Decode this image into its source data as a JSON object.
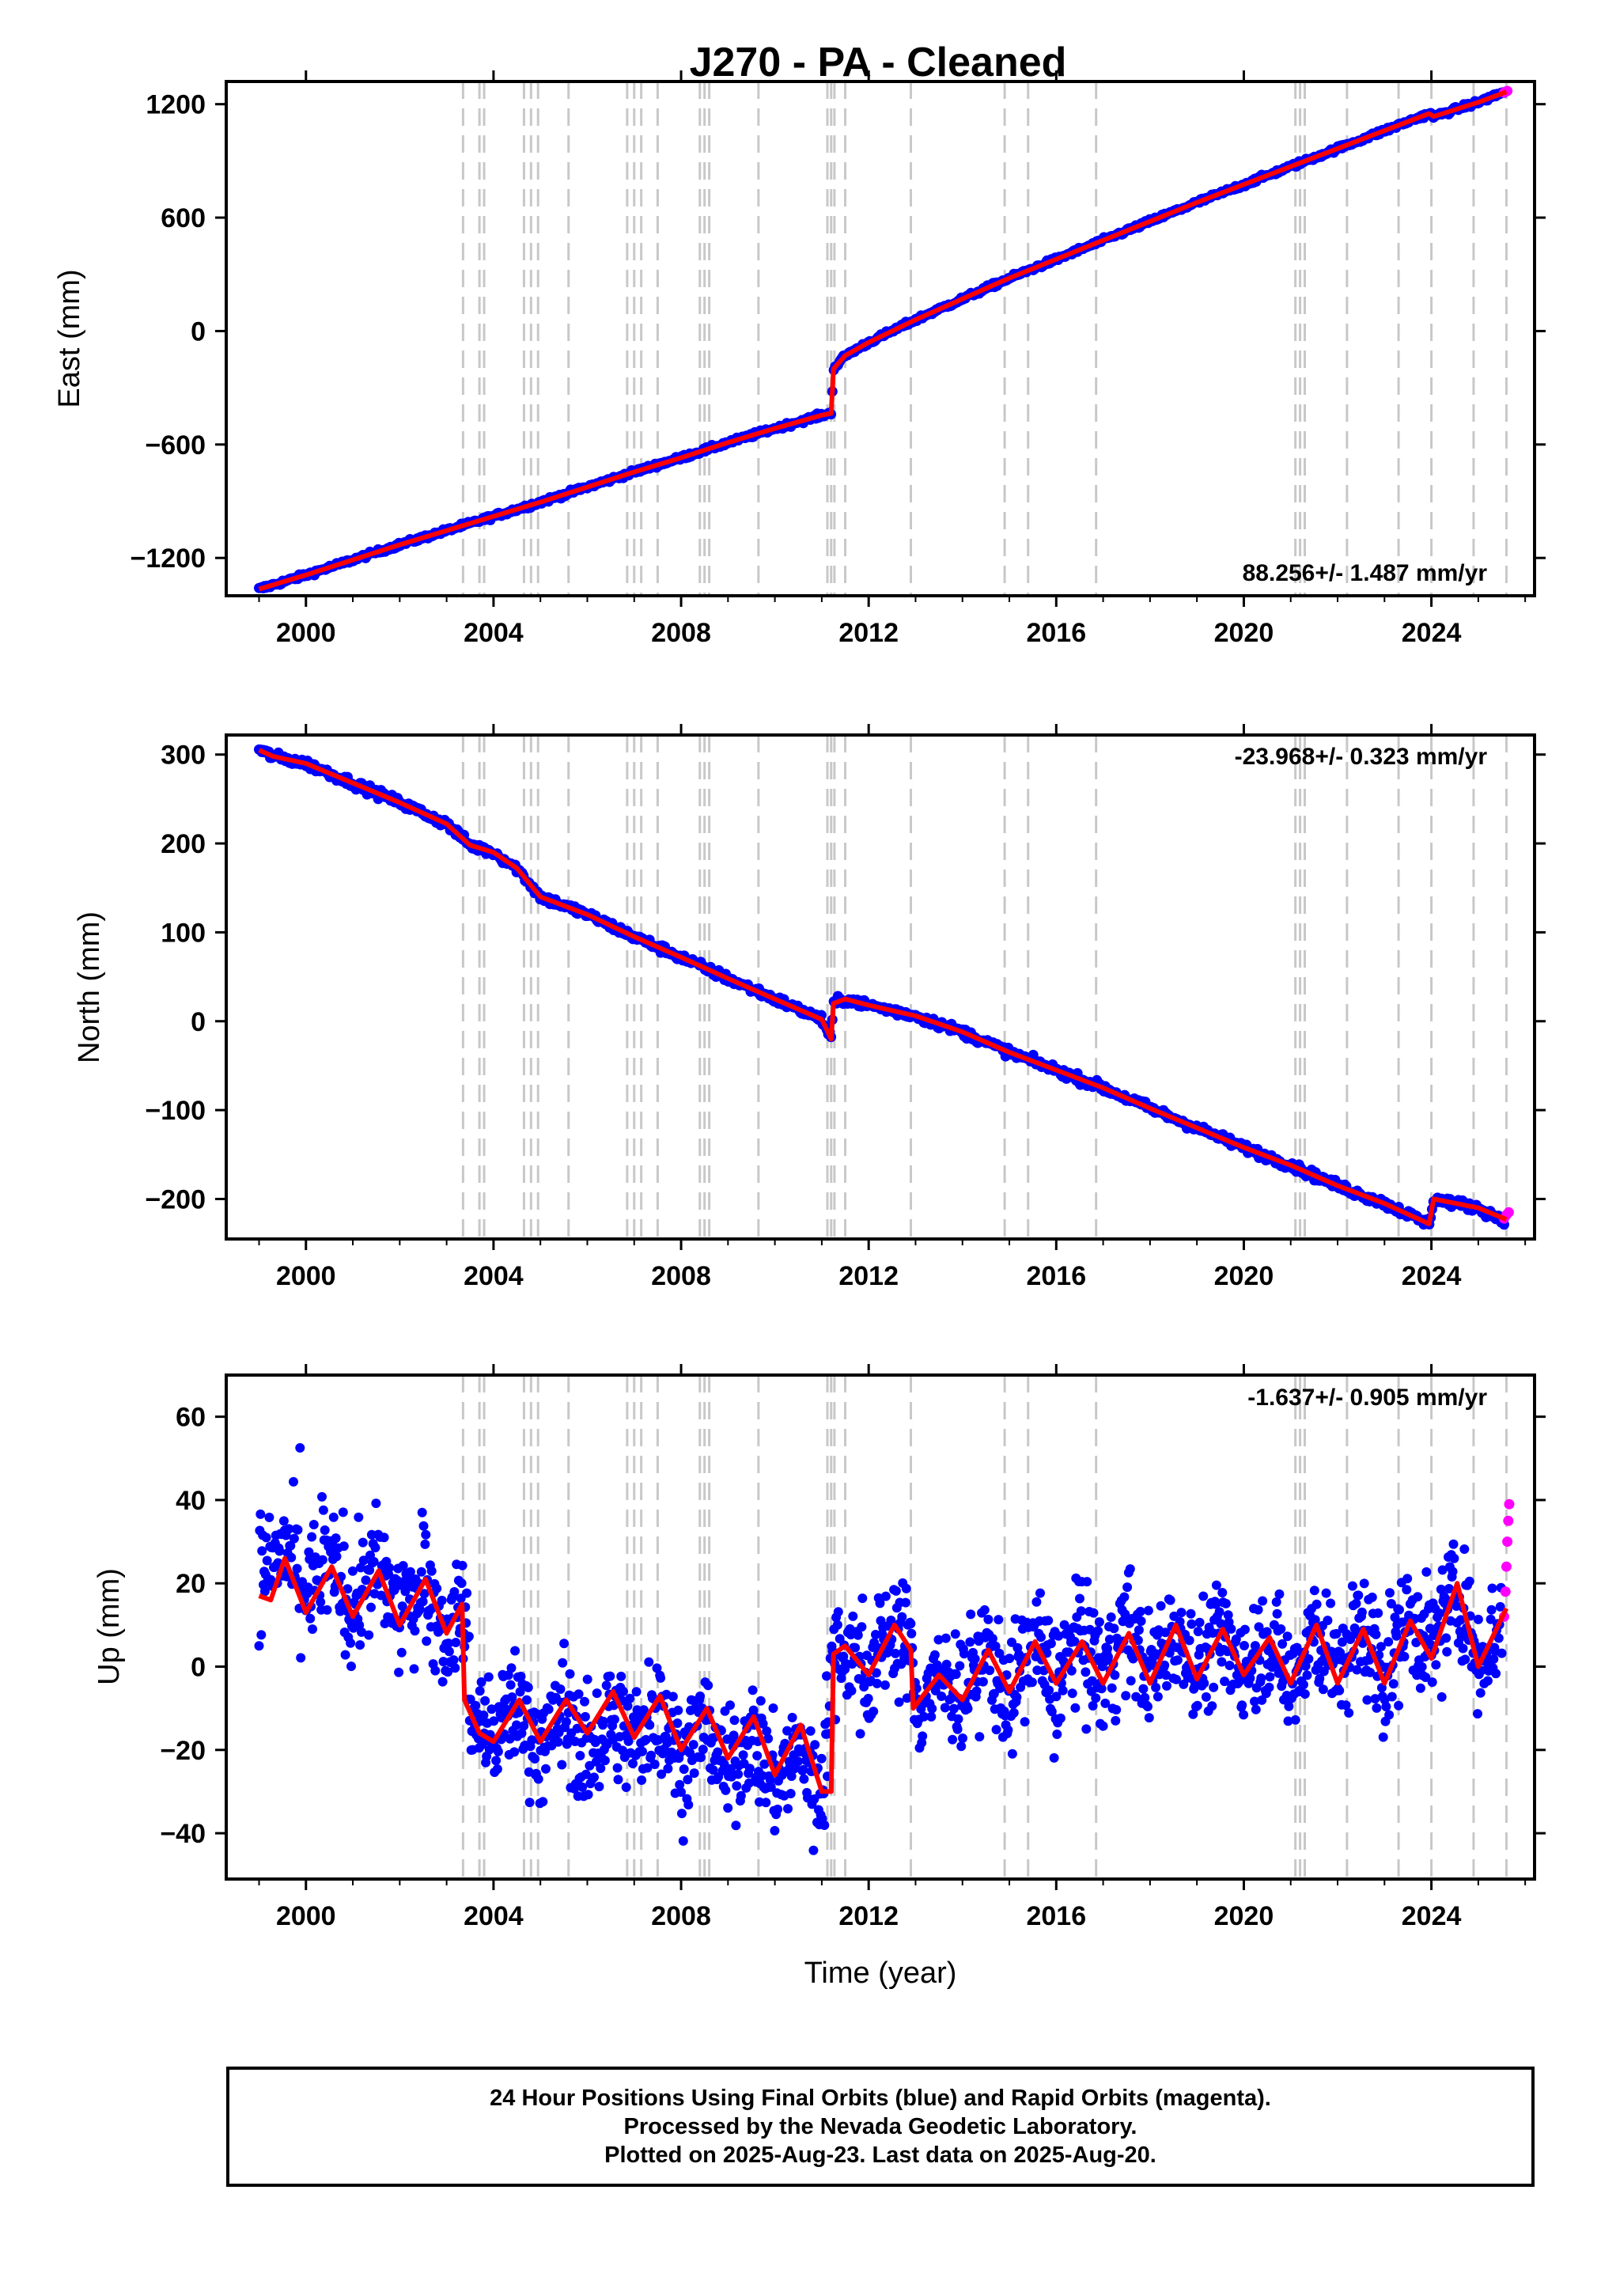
{
  "title": "J270  - PA - Cleaned",
  "x_axis": {
    "label": "Time (year)",
    "range": [
      1998.3,
      2026.2
    ],
    "ticks": [
      2000,
      2004,
      2008,
      2012,
      2016,
      2020,
      2024
    ],
    "tick_labels": [
      "2000",
      "2004",
      "2008",
      "2012",
      "2016",
      "2020",
      "2024"
    ]
  },
  "colors": {
    "final_orbits": "#0000ff",
    "rapid_orbits": "#ff00ff",
    "model": "#ff0000",
    "offset_lines": "#c8c8c8"
  },
  "offset_epochs": [
    2003.35,
    2003.7,
    2003.8,
    2004.65,
    2004.8,
    2004.95,
    2005.6,
    2006.85,
    2007.0,
    2007.15,
    2007.5,
    2008.4,
    2008.5,
    2008.6,
    2009.65,
    2011.12,
    2011.2,
    2011.27,
    2011.5,
    2012.9,
    2014.9,
    2015.4,
    2016.85,
    2021.1,
    2021.2,
    2021.3,
    2022.2,
    2023.3,
    2024.0,
    2024.9,
    2025.6
  ],
  "chart_data": [
    {
      "type": "scatter",
      "component": "East",
      "ylabel": "East (mm)",
      "ylim": [
        -1400,
        1320
      ],
      "yticks": [
        -1200,
        -600,
        0,
        600,
        1200
      ],
      "ytick_labels": [
        "−1200",
        "−600",
        "0",
        "600",
        "1200"
      ],
      "rate_label": "88.256+/- 1.487 mm/yr",
      "rate_position": "bottom-right",
      "series": [
        {
          "name": "Final Orbits (blue)",
          "x": [
            1999.0,
            2000.0,
            2001.0,
            2002.0,
            2003.0,
            2004.0,
            2005.0,
            2006.0,
            2007.0,
            2008.0,
            2009.0,
            2010.0,
            2011.0,
            2011.2,
            2011.25,
            2011.5,
            2012.0,
            2013.0,
            2014.0,
            2015.0,
            2016.0,
            2017.0,
            2018.0,
            2019.0,
            2020.0,
            2021.0,
            2022.0,
            2023.0,
            2023.95,
            2024.05,
            2025.0,
            2025.55
          ],
          "y": [
            -1365,
            -1290,
            -1210,
            -1130,
            -1055,
            -980,
            -905,
            -825,
            -745,
            -670,
            -590,
            -515,
            -445,
            -435,
            -200,
            -130,
            -60,
            60,
            170,
            280,
            380,
            480,
            580,
            680,
            775,
            870,
            965,
            1060,
            1150,
            1135,
            1210,
            1265
          ]
        },
        {
          "name": "Rapid Orbits (magenta)",
          "x": [
            2025.55,
            2025.58,
            2025.62
          ],
          "y": [
            1262,
            1266,
            1270
          ]
        },
        {
          "name": "Model",
          "x": [
            1999.0,
            2000.0,
            2001.0,
            2002.0,
            2003.0,
            2004.0,
            2005.0,
            2006.0,
            2007.0,
            2008.0,
            2009.0,
            2010.0,
            2011.0,
            2011.2,
            2011.25,
            2011.5,
            2012.0,
            2013.0,
            2014.0,
            2015.0,
            2016.0,
            2017.0,
            2018.0,
            2019.0,
            2020.0,
            2021.0,
            2022.0,
            2023.0,
            2023.95,
            2024.05,
            2025.0,
            2025.6
          ],
          "y": [
            -1365,
            -1290,
            -1210,
            -1130,
            -1055,
            -980,
            -905,
            -825,
            -745,
            -670,
            -590,
            -515,
            -445,
            -435,
            -200,
            -130,
            -60,
            60,
            170,
            280,
            380,
            480,
            580,
            680,
            775,
            870,
            965,
            1060,
            1150,
            1135,
            1210,
            1265
          ]
        }
      ]
    },
    {
      "type": "scatter",
      "component": "North",
      "ylabel": "North (mm)",
      "ylim": [
        -245,
        322
      ],
      "yticks": [
        -200,
        -100,
        0,
        100,
        200,
        300
      ],
      "ytick_labels": [
        "−200",
        "−100",
        "0",
        "100",
        "200",
        "300"
      ],
      "rate_label": "-23.968+/- 0.323 mm/yr",
      "rate_position": "top-right",
      "series": [
        {
          "name": "Final Orbits (blue)",
          "x": [
            1999.0,
            1999.3,
            2000.0,
            2001.0,
            2002.0,
            2003.0,
            2003.5,
            2004.0,
            2004.5,
            2005.0,
            2006.0,
            2007.0,
            2008.0,
            2009.0,
            2010.0,
            2011.0,
            2011.2,
            2011.25,
            2011.5,
            2012.0,
            2013.0,
            2014.0,
            2015.0,
            2016.0,
            2017.0,
            2018.0,
            2019.0,
            2020.0,
            2021.0,
            2022.0,
            2023.0,
            2023.95,
            2024.05,
            2025.0,
            2025.55
          ],
          "y": [
            305,
            298,
            290,
            268,
            246,
            222,
            198,
            190,
            172,
            140,
            120,
            95,
            72,
            48,
            25,
            2,
            -20,
            20,
            25,
            18,
            6,
            -12,
            -35,
            -55,
            -75,
            -98,
            -120,
            -142,
            -162,
            -185,
            -205,
            -228,
            -200,
            -210,
            -225
          ]
        },
        {
          "name": "Rapid Orbits (magenta)",
          "x": [
            2025.55,
            2025.6,
            2025.65
          ],
          "y": [
            -222,
            -218,
            -215
          ]
        },
        {
          "name": "Model",
          "x": [
            1999.0,
            1999.3,
            2000.0,
            2001.0,
            2002.0,
            2003.0,
            2003.5,
            2004.0,
            2004.5,
            2005.0,
            2006.0,
            2007.0,
            2008.0,
            2009.0,
            2010.0,
            2011.0,
            2011.2,
            2011.25,
            2011.5,
            2012.0,
            2013.0,
            2014.0,
            2015.0,
            2016.0,
            2017.0,
            2018.0,
            2019.0,
            2020.0,
            2021.0,
            2022.0,
            2023.0,
            2023.95,
            2024.05,
            2025.0,
            2025.6
          ],
          "y": [
            305,
            298,
            290,
            268,
            246,
            222,
            198,
            190,
            172,
            140,
            120,
            95,
            72,
            48,
            25,
            2,
            -20,
            20,
            25,
            18,
            6,
            -12,
            -35,
            -55,
            -75,
            -98,
            -120,
            -142,
            -162,
            -185,
            -205,
            -228,
            -200,
            -210,
            -223
          ]
        }
      ]
    },
    {
      "type": "scatter",
      "component": "Up",
      "ylabel": "Up (mm)",
      "ylim": [
        -51,
        70
      ],
      "yticks": [
        -40,
        -20,
        0,
        20,
        40,
        60
      ],
      "ytick_labels": [
        "−40",
        "−20",
        "0",
        "20",
        "40",
        "60"
      ],
      "rate_label": "-1.637+/- 0.905 mm/yr",
      "rate_position": "top-right",
      "series": [
        {
          "name": "Final Orbits (blue)",
          "x": [
            1999.0,
            1999.5,
            2000.0,
            2000.5,
            2001.0,
            2001.5,
            2002.0,
            2002.5,
            2003.0,
            2003.4,
            2003.5,
            2004.0,
            2004.5,
            2005.0,
            2005.5,
            2006.0,
            2006.5,
            2007.0,
            2007.5,
            2008.0,
            2008.5,
            2009.0,
            2009.5,
            2010.0,
            2010.5,
            2011.0,
            2011.25,
            2011.5,
            2012.0,
            2012.5,
            2012.9,
            2013.0,
            2013.5,
            2014.0,
            2014.5,
            2015.0,
            2015.5,
            2016.0,
            2016.5,
            2017.0,
            2017.5,
            2018.0,
            2018.5,
            2019.0,
            2019.5,
            2020.0,
            2020.5,
            2021.0,
            2021.5,
            2022.0,
            2022.5,
            2023.0,
            2023.5,
            2024.0,
            2024.5,
            2025.0,
            2025.5
          ],
          "y": [
            22,
            28,
            18,
            26,
            14,
            24,
            12,
            22,
            8,
            14,
            -10,
            -18,
            -8,
            -20,
            -10,
            -22,
            -12,
            -18,
            -10,
            -22,
            -14,
            -25,
            -16,
            -28,
            -20,
            -30,
            4,
            6,
            -2,
            10,
            4,
            -10,
            -2,
            -6,
            4,
            -8,
            6,
            -4,
            8,
            -2,
            10,
            -2,
            10,
            0,
            8,
            -2,
            8,
            -4,
            10,
            -2,
            10,
            -2,
            12,
            4,
            20,
            2,
            10
          ]
        },
        {
          "name": "Rapid Orbits (magenta)",
          "x": [
            2025.55,
            2025.58,
            2025.6,
            2025.62,
            2025.64,
            2025.66
          ],
          "y": [
            12,
            18,
            24,
            30,
            35,
            39
          ]
        },
        {
          "name": "Model",
          "x": [
            1999.0,
            1999.25,
            1999.55,
            2000.0,
            2000.55,
            2001.0,
            2001.55,
            2002.0,
            2002.55,
            2003.0,
            2003.33,
            2003.38,
            2003.7,
            2004.0,
            2004.55,
            2005.0,
            2005.55,
            2006.0,
            2006.55,
            2007.0,
            2007.55,
            2008.0,
            2008.55,
            2009.0,
            2009.55,
            2010.0,
            2010.55,
            2011.0,
            2011.2,
            2011.25,
            2011.5,
            2012.0,
            2012.55,
            2012.9,
            2012.95,
            2013.5,
            2014.0,
            2014.55,
            2015.0,
            2015.55,
            2016.0,
            2016.55,
            2017.0,
            2017.55,
            2018.0,
            2018.55,
            2019.0,
            2019.55,
            2020.0,
            2020.55,
            2021.0,
            2021.55,
            2022.0,
            2022.55,
            2023.0,
            2023.55,
            2024.0,
            2024.55,
            2025.0,
            2025.6
          ],
          "y": [
            17,
            16,
            26,
            13,
            24,
            12,
            23,
            10,
            21,
            8,
            15,
            -8,
            -16,
            -18,
            -8,
            -18,
            -8,
            -16,
            -6,
            -17,
            -7,
            -20,
            -10,
            -22,
            -12,
            -26,
            -14,
            -30,
            -30,
            3,
            5,
            -2,
            10,
            4,
            -10,
            -2,
            -8,
            4,
            -6,
            6,
            -4,
            6,
            -4,
            8,
            -4,
            10,
            -3,
            9,
            -2,
            7,
            -4,
            10,
            -4,
            9,
            -4,
            11,
            2,
            20,
            0,
            14
          ]
        }
      ]
    }
  ],
  "footer": {
    "line1": "24 Hour Positions Using Final Orbits (blue) and Rapid Orbits (magenta).",
    "line2": "Processed by the Nevada Geodetic Laboratory.",
    "line3": "Plotted on 2025-Aug-23. Last data on 2025-Aug-20."
  }
}
